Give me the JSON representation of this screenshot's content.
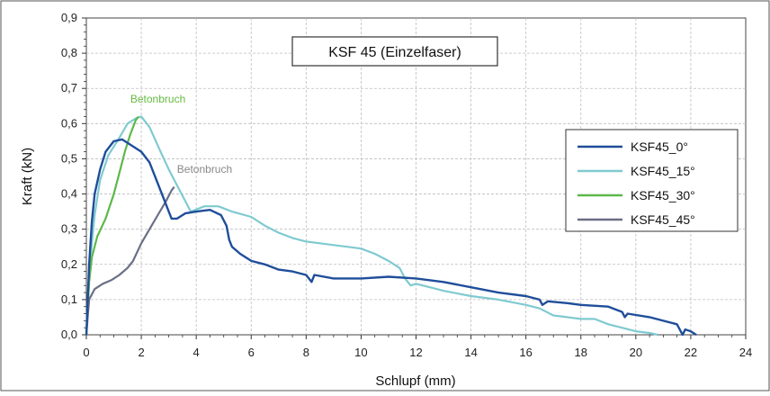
{
  "chart_data": {
    "type": "line",
    "title": "KSF 45 (Einzelfaser)",
    "xlabel": "Schlupf (mm)",
    "ylabel": "Kraft (kN)",
    "xlim": [
      0,
      24
    ],
    "ylim": [
      0,
      0.9
    ],
    "xticks": [
      0,
      2,
      4,
      6,
      8,
      10,
      12,
      14,
      16,
      18,
      20,
      22,
      24
    ],
    "yticks": [
      "0,0",
      "0,1",
      "0,2",
      "0,3",
      "0,4",
      "0,5",
      "0,6",
      "0,7",
      "0,8",
      "0,9"
    ],
    "grid": true,
    "legend_position": "right",
    "annotations": [
      {
        "text": "Betonbruch",
        "x": 1.6,
        "y": 0.66,
        "color": "#66bb44"
      },
      {
        "text": "Betonbruch",
        "x": 3.3,
        "y": 0.46,
        "color": "#888888"
      }
    ],
    "series": [
      {
        "name": "KSF45_0°",
        "color": "#1f4e9a",
        "points": [
          [
            0,
            0
          ],
          [
            0.1,
            0.2
          ],
          [
            0.2,
            0.32
          ],
          [
            0.3,
            0.4
          ],
          [
            0.5,
            0.47
          ],
          [
            0.7,
            0.52
          ],
          [
            1.0,
            0.55
          ],
          [
            1.3,
            0.555
          ],
          [
            1.6,
            0.54
          ],
          [
            2.0,
            0.52
          ],
          [
            2.3,
            0.49
          ],
          [
            2.6,
            0.43
          ],
          [
            2.9,
            0.37
          ],
          [
            3.1,
            0.33
          ],
          [
            3.3,
            0.33
          ],
          [
            3.6,
            0.345
          ],
          [
            4.0,
            0.35
          ],
          [
            4.5,
            0.355
          ],
          [
            4.9,
            0.34
          ],
          [
            5.1,
            0.31
          ],
          [
            5.2,
            0.27
          ],
          [
            5.3,
            0.25
          ],
          [
            5.6,
            0.23
          ],
          [
            6.0,
            0.21
          ],
          [
            6.5,
            0.2
          ],
          [
            7.0,
            0.185
          ],
          [
            7.5,
            0.18
          ],
          [
            8.0,
            0.17
          ],
          [
            8.2,
            0.15
          ],
          [
            8.3,
            0.17
          ],
          [
            9.0,
            0.16
          ],
          [
            10.0,
            0.16
          ],
          [
            11.0,
            0.165
          ],
          [
            12.0,
            0.16
          ],
          [
            13.0,
            0.15
          ],
          [
            14.0,
            0.135
          ],
          [
            15.0,
            0.12
          ],
          [
            16.0,
            0.11
          ],
          [
            16.5,
            0.1
          ],
          [
            16.6,
            0.085
          ],
          [
            16.8,
            0.095
          ],
          [
            17.5,
            0.09
          ],
          [
            18.0,
            0.085
          ],
          [
            19.0,
            0.08
          ],
          [
            19.5,
            0.065
          ],
          [
            19.6,
            0.05
          ],
          [
            19.7,
            0.06
          ],
          [
            20.5,
            0.05
          ],
          [
            21.0,
            0.04
          ],
          [
            21.5,
            0.03
          ],
          [
            21.7,
            0.0
          ],
          [
            21.8,
            0.015
          ],
          [
            22.0,
            0.01
          ],
          [
            22.2,
            0.0
          ]
        ]
      },
      {
        "name": "KSF45_15°",
        "color": "#7fcad0",
        "points": [
          [
            0,
            0
          ],
          [
            0.1,
            0.18
          ],
          [
            0.3,
            0.34
          ],
          [
            0.5,
            0.44
          ],
          [
            0.8,
            0.51
          ],
          [
            1.2,
            0.56
          ],
          [
            1.5,
            0.6
          ],
          [
            1.8,
            0.615
          ],
          [
            2.0,
            0.62
          ],
          [
            2.3,
            0.59
          ],
          [
            2.7,
            0.52
          ],
          [
            3.0,
            0.47
          ],
          [
            3.4,
            0.41
          ],
          [
            3.8,
            0.35
          ],
          [
            4.3,
            0.365
          ],
          [
            4.8,
            0.365
          ],
          [
            5.3,
            0.35
          ],
          [
            6.0,
            0.335
          ],
          [
            6.5,
            0.31
          ],
          [
            7.0,
            0.29
          ],
          [
            7.5,
            0.275
          ],
          [
            8.0,
            0.265
          ],
          [
            8.5,
            0.26
          ],
          [
            9.0,
            0.255
          ],
          [
            9.5,
            0.25
          ],
          [
            10.0,
            0.245
          ],
          [
            10.5,
            0.23
          ],
          [
            11.0,
            0.21
          ],
          [
            11.4,
            0.19
          ],
          [
            11.6,
            0.16
          ],
          [
            11.8,
            0.14
          ],
          [
            12.0,
            0.145
          ],
          [
            12.5,
            0.135
          ],
          [
            13.0,
            0.125
          ],
          [
            14.0,
            0.11
          ],
          [
            15.0,
            0.1
          ],
          [
            16.0,
            0.085
          ],
          [
            16.5,
            0.075
          ],
          [
            17.0,
            0.055
          ],
          [
            17.5,
            0.05
          ],
          [
            18.0,
            0.045
          ],
          [
            18.5,
            0.045
          ],
          [
            19.0,
            0.03
          ],
          [
            19.5,
            0.02
          ],
          [
            20.0,
            0.01
          ],
          [
            20.5,
            0.005
          ],
          [
            20.8,
            0.0
          ]
        ]
      },
      {
        "name": "KSF45_30°",
        "color": "#5cb84a",
        "points": [
          [
            0,
            0
          ],
          [
            0.1,
            0.15
          ],
          [
            0.2,
            0.22
          ],
          [
            0.4,
            0.28
          ],
          [
            0.7,
            0.33
          ],
          [
            1.0,
            0.4
          ],
          [
            1.2,
            0.46
          ],
          [
            1.4,
            0.52
          ],
          [
            1.6,
            0.57
          ],
          [
            1.8,
            0.61
          ],
          [
            1.9,
            0.62
          ]
        ]
      },
      {
        "name": "KSF45_45°",
        "color": "#6a6f86",
        "points": [
          [
            0,
            0
          ],
          [
            0.05,
            0.05
          ],
          [
            0.1,
            0.1
          ],
          [
            0.3,
            0.13
          ],
          [
            0.6,
            0.145
          ],
          [
            0.9,
            0.155
          ],
          [
            1.2,
            0.17
          ],
          [
            1.5,
            0.19
          ],
          [
            1.7,
            0.21
          ],
          [
            2.0,
            0.26
          ],
          [
            2.3,
            0.3
          ],
          [
            2.6,
            0.34
          ],
          [
            2.9,
            0.38
          ],
          [
            3.1,
            0.41
          ],
          [
            3.2,
            0.42
          ]
        ]
      }
    ]
  }
}
